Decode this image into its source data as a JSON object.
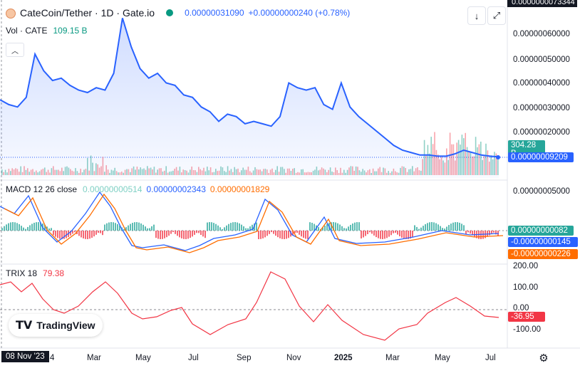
{
  "header": {
    "symbol_title": "CateCoin/Tether · 1D · Gate.io",
    "price": "0.00000031090",
    "change": "+0.00000000240 (+0.78%)",
    "vol_label": "Vol · CATE",
    "vol_value": "109.15 B"
  },
  "macd": {
    "label": "MACD 12 26 close",
    "hist_value": "0.00000000514",
    "macd_value": "0.00000002343",
    "signal_value": "0.00000001829"
  },
  "trix": {
    "label": "TRIX 18",
    "value": "79.38"
  },
  "brand": {
    "name": "TradingView"
  },
  "price_axis": {
    "labels": [
      "0.00000060000",
      "0.00000050000",
      "0.00000040000",
      "0.00000030000",
      "0.00000020000"
    ],
    "top_partial": "0.0000000073344",
    "volume_pill": "304.28 B",
    "price_pill": "0.00000009209"
  },
  "macd_axis": {
    "labels": [
      "0.00000005000"
    ],
    "pill_hist": "0.00000000082",
    "pill_macd": "-0.00000000145",
    "pill_signal": "-0.00000000226"
  },
  "trix_axis": {
    "labels": [
      "200.00",
      "100.00",
      "0.00",
      "-100.00"
    ],
    "pill": "-36.95"
  },
  "time_axis": {
    "crosshair_date": "08 Nov '23",
    "partial": "4",
    "labels": [
      "Mar",
      "May",
      "Jul",
      "Sep",
      "Nov",
      "2025",
      "Mar",
      "May",
      "Jul"
    ]
  },
  "colors": {
    "price_line": "#2962ff",
    "up": "#089981",
    "down": "#f23645",
    "macd_line": "#2962ff",
    "signal_line": "#ff6d00",
    "trix_line": "#f23645"
  },
  "chart_data": {
    "type": "line",
    "title": "CateCoin/Tether · 1D · Gate.io",
    "price_series": [
      3.3e-07,
      3.1e-07,
      3e-07,
      3.4e-07,
      5.2e-07,
      4.5e-07,
      4.1e-07,
      4.2e-07,
      3.9e-07,
      3.7e-07,
      3.6e-07,
      3.8e-07,
      3.7e-07,
      4.4e-07,
      6.7e-07,
      5.5e-07,
      4.6e-07,
      4.2e-07,
      4.4e-07,
      4e-07,
      3.9e-07,
      3.5e-07,
      3.4e-07,
      3e-07,
      2.8e-07,
      2.4e-07,
      2.7e-07,
      2.6e-07,
      2.3e-07,
      2.4e-07,
      2.3e-07,
      2.2e-07,
      2.6e-07,
      4e-07,
      3.8e-07,
      3.7e-07,
      3.8e-07,
      3.1e-07,
      2.9e-07,
      4e-07,
      3e-07,
      2.6e-07,
      2.3e-07,
      2e-07,
      1.7e-07,
      1.4e-07,
      1.2e-07,
      1.1e-07,
      1e-07,
      1e-07,
      9.5e-08,
      9.5e-08,
      1.05e-07,
      1.2e-07,
      1.1e-07,
      1e-07,
      9.5e-08,
      9.2e-08
    ],
    "volume_series": [],
    "ylim": [
      0,
      7.3e-07
    ]
  }
}
